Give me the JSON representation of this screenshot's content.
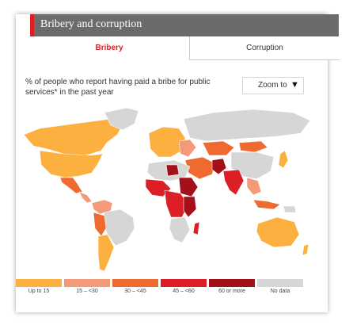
{
  "widget": {
    "title": "Bribery and corruption",
    "accent_color": "#e21b23",
    "header_color": "#6b6b6b"
  },
  "tabs": [
    {
      "label": "Bribery",
      "active": true
    },
    {
      "label": "Corruption",
      "active": false
    }
  ],
  "question": "% of people who report having paid a bribe for public services* in the past year",
  "zoom": {
    "label": "Zoom to",
    "icon": "triangle-down-icon"
  },
  "legend": [
    {
      "label": "Up to 15",
      "color": "#fbb040"
    },
    {
      "label": "15 – <30",
      "color": "#f59a78"
    },
    {
      "label": "30 – <45",
      "color": "#ee6a30"
    },
    {
      "label": "45 – <60",
      "color": "#dc1f26"
    },
    {
      "label": "60 or more",
      "color": "#a4101a"
    },
    {
      "label": "No data",
      "color": "#d6d6d6"
    }
  ]
}
